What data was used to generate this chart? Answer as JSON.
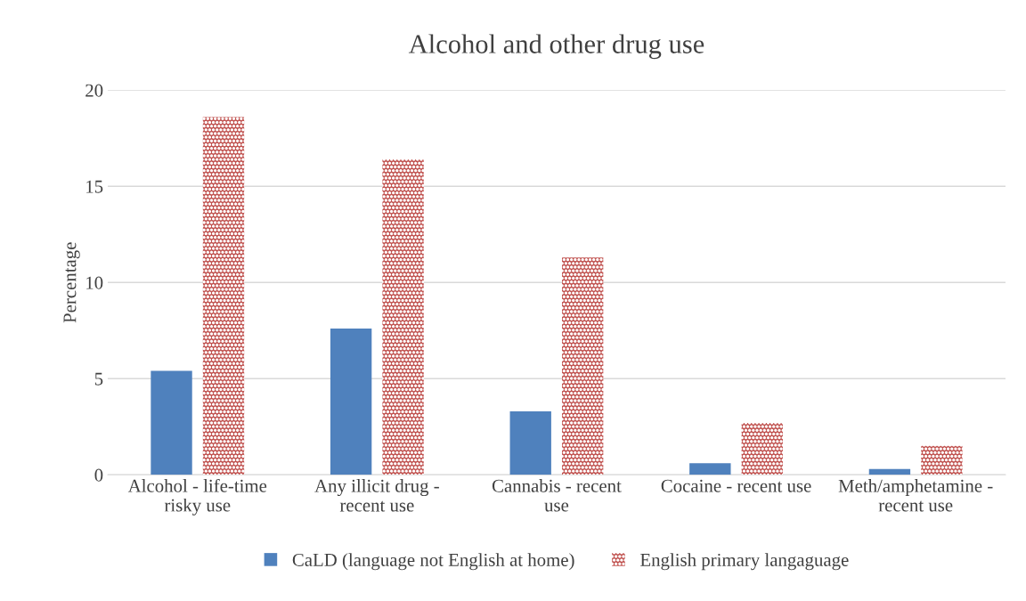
{
  "chart_data": {
    "type": "bar",
    "title": "Alcohol and other drug use",
    "ylabel": "Percentage",
    "categories": [
      "Alcohol - life-time risky use",
      "Any illicit drug - recent use",
      "Cannabis - recent use",
      "Cocaine - recent use",
      "Meth/amphetamine - recent use"
    ],
    "series": [
      {
        "name": "CaLD (language not English at home)",
        "color": "#4f81bd",
        "values": [
          5.4,
          7.6,
          3.3,
          0.6,
          0.3
        ]
      },
      {
        "name": "English primary langaguage",
        "color": "#c0504d",
        "values": [
          18.6,
          16.4,
          11.3,
          2.7,
          1.5
        ]
      }
    ],
    "ylim": [
      0,
      20
    ],
    "yticks": [
      0,
      5,
      10,
      15,
      20
    ],
    "grid": "y",
    "legend": "bottom"
  }
}
